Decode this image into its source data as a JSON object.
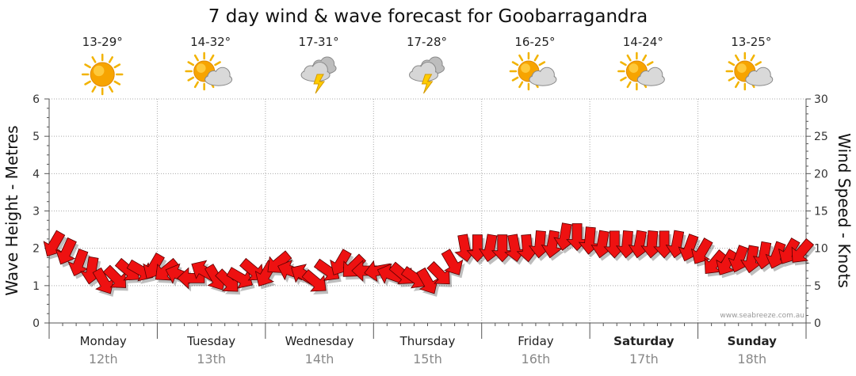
{
  "chart_data": {
    "type": "line",
    "title": "7 day wind & wave forecast for Goobarragandra",
    "ylabel_left": "Wave Height - Metres",
    "ylabel_right": "Wind Speed - Knots",
    "ylim_left": [
      0,
      6
    ],
    "ylim_right": [
      0,
      30
    ],
    "yticks_left": [
      "0",
      "1",
      "2",
      "3",
      "4",
      "5",
      "6"
    ],
    "yticks_right": [
      "0",
      "5",
      "10",
      "15",
      "20",
      "25",
      "30"
    ],
    "grid": true,
    "credit": "www.seabreeze.com.au",
    "days": [
      {
        "name": "Monday",
        "date": "12th",
        "temp": "13-29°",
        "icon": "sun-icon",
        "bold": false
      },
      {
        "name": "Tuesday",
        "date": "13th",
        "temp": "14-32°",
        "icon": "sun-cloud-icon",
        "bold": false
      },
      {
        "name": "Wednesday",
        "date": "14th",
        "temp": "17-31°",
        "icon": "storm-icon",
        "bold": false
      },
      {
        "name": "Thursday",
        "date": "15th",
        "temp": "17-28°",
        "icon": "storm-icon",
        "bold": false
      },
      {
        "name": "Friday",
        "date": "16th",
        "temp": "16-25°",
        "icon": "sun-cloud-icon",
        "bold": false
      },
      {
        "name": "Saturday",
        "date": "17th",
        "temp": "14-24°",
        "icon": "sun-cloud-icon",
        "bold": true
      },
      {
        "name": "Sunday",
        "date": "18th",
        "temp": "13-25°",
        "icon": "sun-cloud-icon",
        "bold": true
      }
    ],
    "series": [
      {
        "name": "Wind Speed",
        "color": "#ee1111",
        "values_knots": [
          10.5,
          9.5,
          8,
          7,
          5.5,
          6,
          7,
          7,
          7.5,
          7,
          6.5,
          6,
          7,
          6,
          5.5,
          6,
          7,
          6.5,
          8,
          7,
          6.5,
          5.5,
          7,
          8,
          7.5,
          7,
          7,
          6.5,
          6.5,
          6,
          5.5,
          6.5,
          8,
          10,
          10,
          10,
          10,
          10,
          10,
          10.5,
          10.5,
          11.5,
          11.5,
          11,
          10.5,
          10.5,
          10.5,
          10.5,
          10.5,
          10.5,
          10.5,
          10,
          9.5,
          8,
          8,
          8.5,
          8.5,
          9,
          9,
          9.5,
          9.5
        ],
        "direction_deg": [
          120,
          115,
          110,
          100,
          60,
          45,
          40,
          30,
          120,
          140,
          200,
          180,
          210,
          60,
          45,
          30,
          40,
          120,
          140,
          200,
          210,
          40,
          35,
          120,
          135,
          180,
          170,
          200,
          40,
          35,
          60,
          45,
          60,
          80,
          90,
          100,
          90,
          80,
          85,
          95,
          100,
          100,
          90,
          95,
          100,
          90,
          95,
          100,
          95,
          90,
          100,
          110,
          120,
          130,
          120,
          110,
          100,
          100,
          110,
          120,
          130
        ]
      }
    ]
  }
}
